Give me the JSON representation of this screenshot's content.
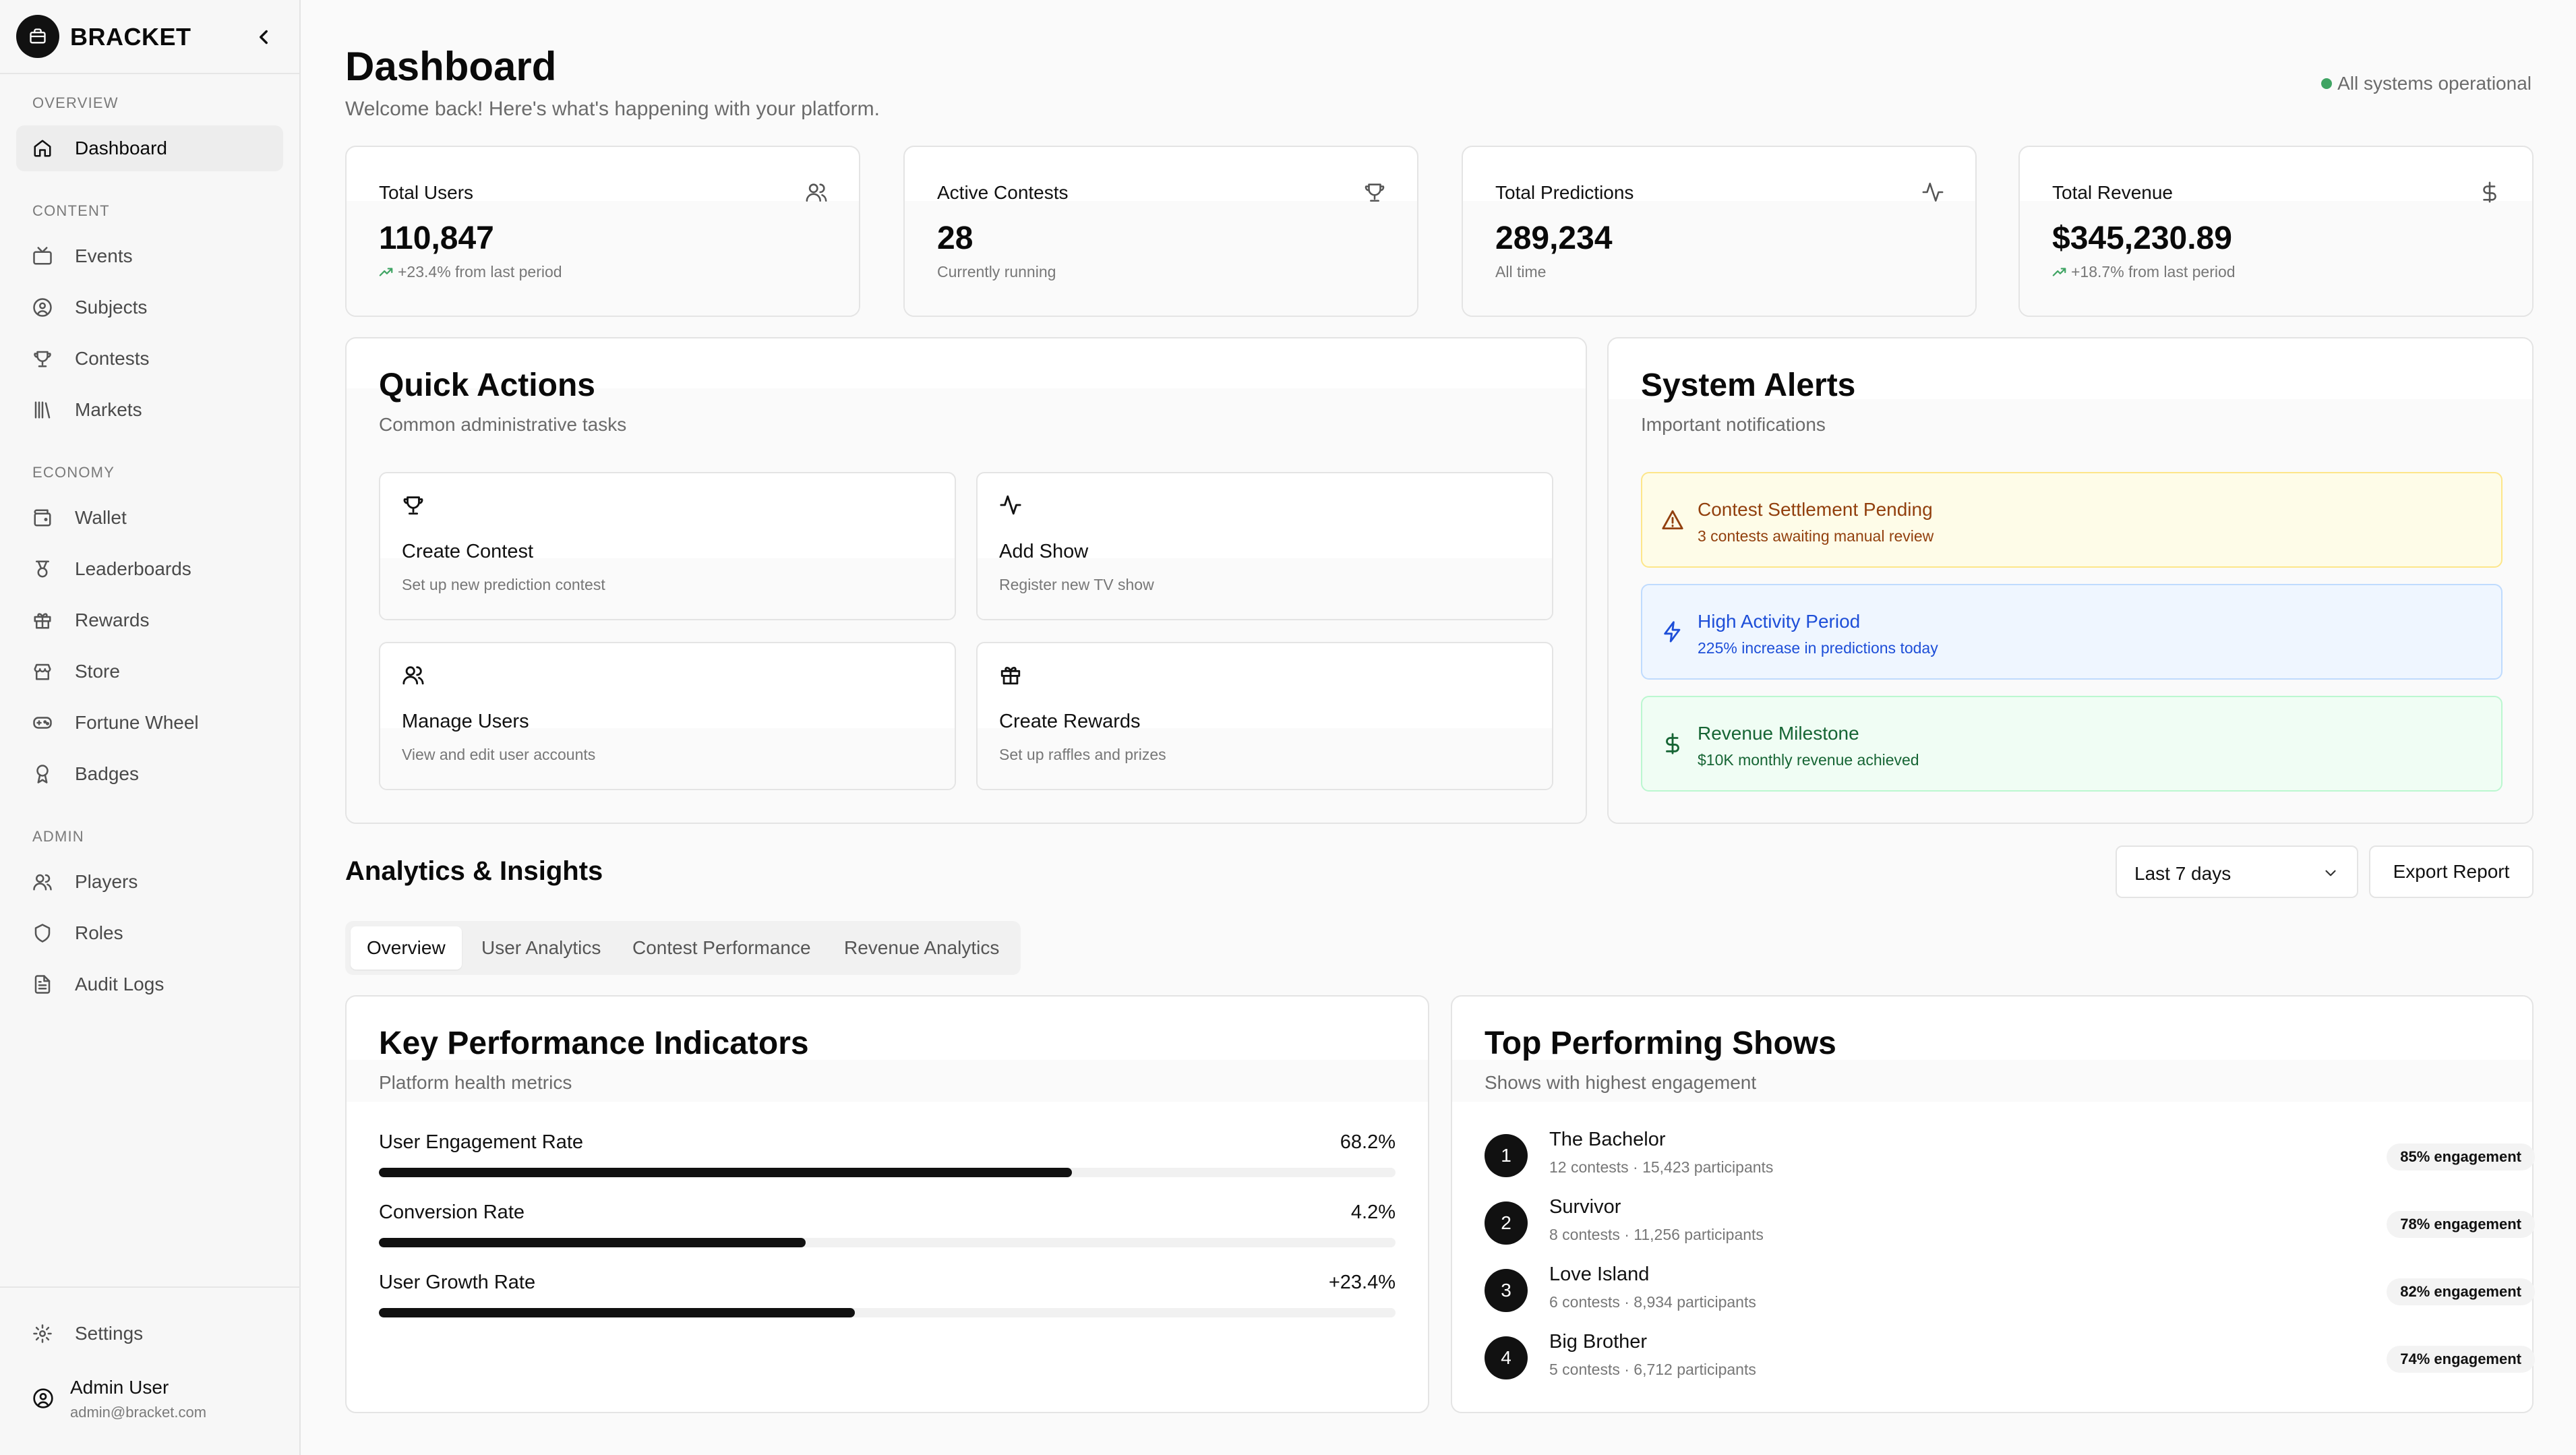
{
  "app": {
    "brand": "BRACKET"
  },
  "sidebar": {
    "sections": {
      "overview": "OVERVIEW",
      "content": "CONTENT",
      "economy": "ECONOMY",
      "admin": "ADMIN"
    },
    "items": [
      {
        "label": "Dashboard",
        "icon": "home-icon",
        "active": true
      },
      {
        "label": "Events",
        "icon": "tv-icon"
      },
      {
        "label": "Subjects",
        "icon": "user-circle-icon"
      },
      {
        "label": "Contests",
        "icon": "trophy-icon"
      },
      {
        "label": "Markets",
        "icon": "library-icon"
      },
      {
        "label": "Wallet",
        "icon": "wallet-icon"
      },
      {
        "label": "Leaderboards",
        "icon": "medal-icon"
      },
      {
        "label": "Rewards",
        "icon": "gift-icon"
      },
      {
        "label": "Store",
        "icon": "store-icon"
      },
      {
        "label": "Fortune Wheel",
        "icon": "gamepad-icon"
      },
      {
        "label": "Badges",
        "icon": "award-icon"
      },
      {
        "label": "Players",
        "icon": "users-icon"
      },
      {
        "label": "Roles",
        "icon": "shield-icon"
      },
      {
        "label": "Audit Logs",
        "icon": "file-text-icon"
      }
    ],
    "settings": "Settings",
    "user": {
      "name": "Admin User",
      "email": "admin@bracket.com"
    }
  },
  "header": {
    "title": "Dashboard",
    "subtitle": "Welcome back! Here's what's happening with your platform.",
    "status": "All systems operational",
    "status_color": "#3fa463"
  },
  "stats": [
    {
      "label": "Total Users",
      "value": "110,847",
      "sub": "+23.4% from last period",
      "trend": true,
      "icon": "users-icon"
    },
    {
      "label": "Active Contests",
      "value": "28",
      "sub": "Currently running",
      "trend": false,
      "icon": "trophy-icon"
    },
    {
      "label": "Total Predictions",
      "value": "289,234",
      "sub": "All time",
      "trend": false,
      "icon": "activity-icon"
    },
    {
      "label": "Total Revenue",
      "value": "$345,230.89",
      "sub": "+18.7% from last period",
      "trend": true,
      "icon": "dollar-icon"
    }
  ],
  "quick_actions": {
    "title": "Quick Actions",
    "subtitle": "Common administrative tasks",
    "items": [
      {
        "title": "Create Contest",
        "sub": "Set up new prediction contest",
        "icon": "trophy-icon"
      },
      {
        "title": "Add Show",
        "sub": "Register new TV show",
        "icon": "activity-icon"
      },
      {
        "title": "Manage Users",
        "sub": "View and edit user accounts",
        "icon": "users-icon"
      },
      {
        "title": "Create Rewards",
        "sub": "Set up raffles and prizes",
        "icon": "gift-icon"
      }
    ]
  },
  "alerts": {
    "title": "System Alerts",
    "subtitle": "Important notifications",
    "items": [
      {
        "title": "Contest Settlement Pending",
        "sub": "3 contests awaiting manual review",
        "tone": "yellow",
        "icon": "warning-icon"
      },
      {
        "title": "High Activity Period",
        "sub": "225% increase in predictions today",
        "tone": "blue",
        "icon": "zap-icon"
      },
      {
        "title": "Revenue Milestone",
        "sub": "$10K monthly revenue achieved",
        "tone": "green",
        "icon": "dollar-icon"
      }
    ]
  },
  "analytics": {
    "title": "Analytics & Insights",
    "range": "Last 7 days",
    "export": "Export Report",
    "tabs": [
      "Overview",
      "User Analytics",
      "Contest Performance",
      "Revenue Analytics"
    ],
    "active_tab": 0
  },
  "kpi": {
    "title": "Key Performance Indicators",
    "subtitle": "Platform health metrics",
    "rows": [
      {
        "label": "User Engagement Rate",
        "value": "68.2%",
        "fill": 0.682
      },
      {
        "label": "Conversion Rate",
        "value": "4.2%",
        "fill": 0.42
      },
      {
        "label": "User Growth Rate",
        "value": "+23.4%",
        "fill": 0.468
      }
    ]
  },
  "shows": {
    "title": "Top Performing Shows",
    "subtitle": "Shows with highest engagement",
    "rows": [
      {
        "rank": "1",
        "name": "The Bachelor",
        "meta": "12 contests · 15,423 participants",
        "engagement": "85% engagement"
      },
      {
        "rank": "2",
        "name": "Survivor",
        "meta": "8 contests · 11,256 participants",
        "engagement": "78% engagement"
      },
      {
        "rank": "3",
        "name": "Love Island",
        "meta": "6 contests · 8,934 participants",
        "engagement": "82% engagement"
      },
      {
        "rank": "4",
        "name": "Big Brother",
        "meta": "5 contests · 6,712 participants",
        "engagement": "74% engagement"
      }
    ]
  }
}
